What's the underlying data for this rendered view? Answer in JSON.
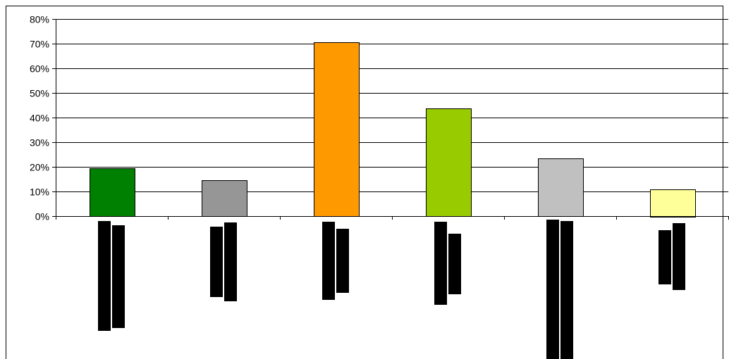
{
  "chart_data": {
    "type": "bar",
    "categories": [
      "",
      "",
      "",
      "",
      "",
      ""
    ],
    "values": [
      19.5,
      14.7,
      70.5,
      43.8,
      23.3,
      11.0
    ],
    "bar_colors": [
      "#008000",
      "#969696",
      "#ff9900",
      "#99cc00",
      "#c0c0c0",
      "#ffff99"
    ],
    "ylim": [
      0,
      80
    ],
    "yticks": [
      0,
      10,
      20,
      30,
      40,
      50,
      60,
      70,
      80
    ],
    "ytick_labels": [
      "0%",
      "10%",
      "20%",
      "30%",
      "40%",
      "50%",
      "60%",
      "70%",
      "80%"
    ],
    "ytick_suffix": "%",
    "grid": true,
    "legend": "none",
    "title": "",
    "xlabel": "",
    "ylabel": "",
    "redacted_category_labels": true,
    "redaction_color": "#000000",
    "bar_edge_color": "#000000",
    "grid_color": "#000000",
    "background_color": "#ffffff"
  }
}
